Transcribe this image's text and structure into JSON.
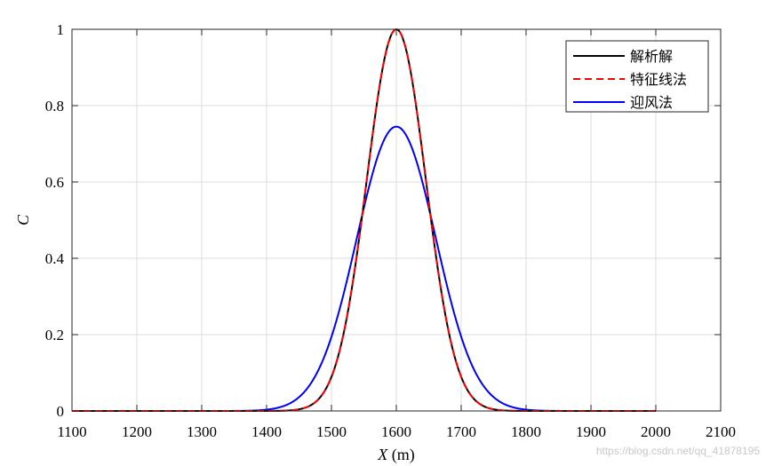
{
  "chart_data": {
    "type": "line",
    "xlabel_var": "X",
    "xlabel_unit": " (m)",
    "ylabel": "C",
    "xlim": [
      1100,
      2100
    ],
    "ylim": [
      0,
      1
    ],
    "xticks": [
      1100,
      1200,
      1300,
      1400,
      1500,
      1600,
      1700,
      1800,
      1900,
      2000,
      2100
    ],
    "yticks": [
      0,
      0.2,
      0.4,
      0.6,
      0.8,
      1
    ],
    "ytick_labels": [
      "0",
      "0.2",
      "0.4",
      "0.6",
      "0.8",
      "1"
    ],
    "grid": true,
    "legend_position": "top-right",
    "x_range": [
      1100,
      2000
    ],
    "series": [
      {
        "name": "解析解",
        "color": "#000000",
        "dash": "solid",
        "center": 1600,
        "peak": 1.0,
        "sigma": 45.5
      },
      {
        "name": "特征线法",
        "color": "#ff0000",
        "dash": "dashed",
        "center": 1600,
        "peak": 1.0,
        "sigma": 45.5
      },
      {
        "name": "迎风法",
        "color": "#0000ff",
        "dash": "solid",
        "center": 1600,
        "peak": 0.745,
        "sigma": 61
      }
    ]
  },
  "watermark": "https://blog.csdn.net/qq_41878195"
}
